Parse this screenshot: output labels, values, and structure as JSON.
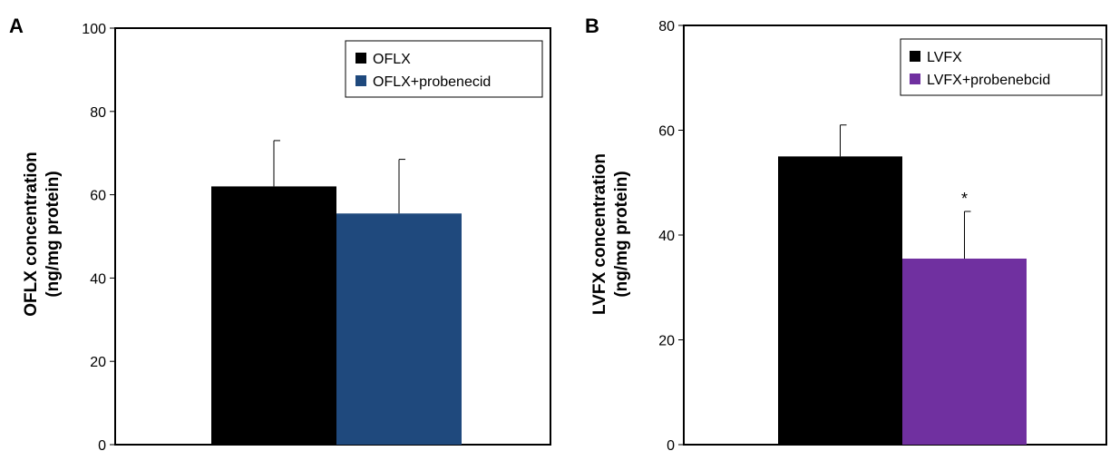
{
  "chart_data": [
    {
      "panel_label": "A",
      "type": "bar",
      "categories": [
        ""
      ],
      "series": [
        {
          "name": "OFLX",
          "values": [
            62
          ],
          "error": [
            11
          ],
          "color": "#000000"
        },
        {
          "name": "OFLX+probenecid",
          "values": [
            55.5
          ],
          "error": [
            13
          ],
          "color": "#1f497d"
        }
      ],
      "ylabel_lines": [
        "OFLX concentration",
        "(ng/mg protein)"
      ],
      "ylim": [
        0,
        100
      ],
      "yticks": [
        "0",
        "20",
        "40",
        "60",
        "80",
        "100"
      ],
      "ytick_values": [
        0,
        20,
        40,
        60,
        80,
        100
      ],
      "legend": "top-right",
      "annotations": [],
      "grid": false
    },
    {
      "panel_label": "B",
      "type": "bar",
      "categories": [
        ""
      ],
      "series": [
        {
          "name": "LVFX",
          "values": [
            55
          ],
          "error": [
            6
          ],
          "color": "#000000"
        },
        {
          "name": "LVFX+probenebcid",
          "values": [
            35.5
          ],
          "error": [
            9
          ],
          "color": "#7030a0"
        }
      ],
      "ylabel_lines": [
        "LVFX concentration",
        "(ng/mg protein)"
      ],
      "ylim": [
        0,
        80
      ],
      "yticks": [
        "0",
        "20",
        "40",
        "60",
        "80"
      ],
      "ytick_values": [
        0,
        20,
        40,
        60,
        80
      ],
      "legend": "top-right",
      "annotations": [
        {
          "text": "*",
          "series_index": 1
        }
      ],
      "grid": false
    }
  ]
}
